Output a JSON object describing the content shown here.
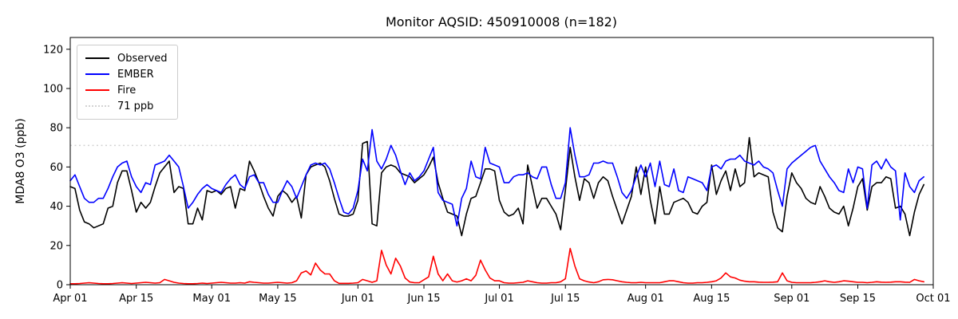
{
  "title": "Monitor AQSID: 450910008 (n=182)",
  "axes": {
    "ylabel": "MDA8 O3 (ppb)",
    "yticks": [
      0,
      20,
      40,
      60,
      80,
      100,
      120
    ],
    "ylim": [
      0,
      126
    ],
    "xlim": [
      0,
      183
    ],
    "xticks": [
      {
        "pos": 0,
        "label": "Apr 01"
      },
      {
        "pos": 14,
        "label": "Apr 15"
      },
      {
        "pos": 30,
        "label": "May 01"
      },
      {
        "pos": 44,
        "label": "May 15"
      },
      {
        "pos": 61,
        "label": "Jun 01"
      },
      {
        "pos": 75,
        "label": "Jun 15"
      },
      {
        "pos": 91,
        "label": "Jul 01"
      },
      {
        "pos": 105,
        "label": "Jul 15"
      },
      {
        "pos": 122,
        "label": "Aug 01"
      },
      {
        "pos": 136,
        "label": "Aug 15"
      },
      {
        "pos": 153,
        "label": "Sep 01"
      },
      {
        "pos": 167,
        "label": "Sep 15"
      },
      {
        "pos": 183,
        "label": "Oct 01"
      }
    ]
  },
  "legend": {
    "items": [
      {
        "label": "Observed",
        "color": "#000000",
        "style": "solid"
      },
      {
        "label": "EMBER",
        "color": "#0000ff",
        "style": "solid"
      },
      {
        "label": "Fire",
        "color": "#ff0000",
        "style": "solid"
      },
      {
        "label": "71 ppb",
        "color": "#d3d3d3",
        "style": "dotted"
      }
    ]
  },
  "chart_data": {
    "type": "line",
    "title": "Monitor AQSID: 450910008 (n=182)",
    "xlabel": "",
    "ylabel": "MDA8 O3 (ppb)",
    "n": 182,
    "x_unit": "daily, day index 0 = Apr 01, last index 181 = Sep 29",
    "xlim": [
      0,
      183
    ],
    "ylim": [
      0,
      126
    ],
    "grid": false,
    "legend_position": "upper left",
    "threshold": {
      "value": 71,
      "label": "71 ppb",
      "color": "#d3d3d3",
      "linestyle": "dotted"
    },
    "x_tick_positions": [
      0,
      14,
      30,
      44,
      61,
      75,
      91,
      105,
      122,
      136,
      153,
      167,
      183
    ],
    "x_tick_labels": [
      "Apr 01",
      "Apr 15",
      "May 01",
      "May 15",
      "Jun 01",
      "Jun 15",
      "Jul 01",
      "Jul 15",
      "Aug 01",
      "Aug 15",
      "Sep 01",
      "Sep 15",
      "Oct 01"
    ],
    "series": [
      {
        "name": "Observed",
        "color": "#000000",
        "values": [
          50,
          49,
          38,
          32,
          31,
          29,
          30,
          31,
          39,
          40,
          52,
          58,
          58,
          48,
          37,
          42,
          39,
          42,
          50,
          57,
          60,
          63,
          47,
          50,
          49,
          31,
          31,
          39,
          33,
          48,
          47,
          48,
          46,
          49,
          50,
          39,
          49,
          48,
          63,
          58,
          52,
          45,
          39,
          35,
          45,
          48,
          46,
          42,
          45,
          34,
          56,
          60,
          61,
          62,
          60,
          53,
          44,
          36,
          35,
          35,
          36,
          43,
          72,
          73,
          31,
          30,
          57,
          60,
          61,
          60,
          57,
          56,
          55,
          52,
          54,
          56,
          60,
          65,
          52,
          44,
          37,
          36,
          35,
          25,
          36,
          44,
          45,
          52,
          59,
          59,
          58,
          43,
          37,
          35,
          36,
          39,
          31,
          61,
          50,
          39,
          44,
          44,
          40,
          36,
          28,
          48,
          70,
          55,
          43,
          54,
          52,
          44,
          52,
          55,
          53,
          45,
          38,
          31,
          38,
          45,
          60,
          46,
          60,
          43,
          31,
          50,
          36,
          36,
          42,
          43,
          44,
          42,
          37,
          36,
          40,
          42,
          61,
          46,
          53,
          58,
          48,
          59,
          50,
          52,
          75,
          55,
          57,
          56,
          55,
          37,
          29,
          27,
          45,
          57,
          52,
          49,
          44,
          42,
          41,
          50,
          45,
          39,
          37,
          36,
          40,
          30,
          39,
          50,
          54,
          38,
          50,
          52,
          52,
          55,
          54,
          39,
          40,
          36,
          25,
          37,
          46,
          51
        ]
      },
      {
        "name": "EMBER",
        "color": "#0000ff",
        "values": [
          53,
          56,
          50,
          44,
          42,
          42,
          44,
          44,
          49,
          55,
          60,
          62,
          63,
          55,
          50,
          47,
          52,
          51,
          61,
          62,
          63,
          66,
          63,
          60,
          50,
          39,
          42,
          46,
          49,
          51,
          49,
          48,
          47,
          51,
          54,
          56,
          51,
          49,
          55,
          56,
          52,
          52,
          46,
          42,
          42,
          48,
          53,
          50,
          44,
          50,
          56,
          61,
          62,
          61,
          62,
          59,
          52,
          44,
          37,
          36,
          39,
          48,
          64,
          58,
          79,
          63,
          59,
          64,
          71,
          66,
          58,
          51,
          57,
          53,
          55,
          58,
          64,
          70,
          47,
          43,
          42,
          41,
          30,
          44,
          49,
          63,
          55,
          54,
          70,
          62,
          61,
          60,
          52,
          52,
          55,
          56,
          56,
          57,
          55,
          54,
          60,
          60,
          51,
          44,
          44,
          52,
          80,
          66,
          55,
          55,
          56,
          62,
          62,
          63,
          62,
          62,
          55,
          47,
          44,
          48,
          55,
          61,
          55,
          62,
          50,
          63,
          51,
          50,
          59,
          48,
          47,
          55,
          54,
          53,
          52,
          48,
          60,
          61,
          59,
          63,
          64,
          64,
          66,
          63,
          62,
          61,
          63,
          60,
          59,
          57,
          48,
          40,
          59,
          62,
          64,
          66,
          68,
          70,
          71,
          63,
          59,
          55,
          52,
          48,
          47,
          59,
          52,
          60,
          59,
          39,
          61,
          63,
          59,
          64,
          60,
          58,
          33,
          57,
          50,
          47,
          53,
          55
        ]
      },
      {
        "name": "Fire",
        "color": "#ff0000",
        "values": [
          0.5,
          0.5,
          0.6,
          0.8,
          1,
          0.8,
          0.6,
          0.5,
          0.5,
          0.6,
          0.8,
          1,
          0.8,
          0.6,
          0.8,
          1,
          1.2,
          1,
          0.8,
          1,
          2.7,
          2,
          1.2,
          0.8,
          0.6,
          0.5,
          0.5,
          0.6,
          0.8,
          0.6,
          0.8,
          1,
          1.2,
          1,
          0.8,
          0.8,
          1,
          0.8,
          1.5,
          1.2,
          1,
          0.8,
          0.8,
          1,
          1.2,
          1,
          0.8,
          1,
          2,
          6,
          7,
          5,
          11,
          7.5,
          5.5,
          5.5,
          2,
          0.7,
          0.7,
          0.7,
          0.8,
          1,
          2.7,
          2,
          1.2,
          2,
          17.5,
          10,
          5.5,
          13.5,
          9.5,
          3.4,
          1.4,
          1,
          1,
          2.5,
          4,
          14.5,
          5.5,
          2,
          5.5,
          2,
          1.4,
          2,
          3,
          2,
          4.8,
          12.5,
          7.5,
          3.4,
          2,
          2,
          1,
          0.8,
          0.8,
          1,
          1.2,
          2,
          1.5,
          1,
          0.8,
          0.8,
          1,
          1,
          1.5,
          3,
          18.5,
          9.5,
          3,
          2,
          1.4,
          1,
          1.5,
          2.5,
          2.7,
          2.5,
          2,
          1.5,
          1.2,
          1,
          1,
          1.2,
          1,
          1,
          1,
          1,
          1.5,
          2,
          2,
          1.5,
          1,
          0.8,
          0.8,
          1,
          1,
          1.2,
          1.5,
          2,
          3.4,
          6,
          4,
          3.4,
          2.3,
          1.8,
          1.5,
          1.5,
          1.3,
          1.2,
          1.2,
          1.3,
          1.5,
          6,
          2,
          1.2,
          1,
          1,
          1,
          1,
          1.2,
          1.5,
          2,
          1.5,
          1.2,
          1.5,
          2,
          1.8,
          1.5,
          1.2,
          1.2,
          1,
          1.2,
          1.5,
          1.3,
          1.2,
          1.3,
          1.5,
          1.5,
          1.3,
          1.2,
          2.7,
          2,
          1.5
        ]
      }
    ]
  }
}
